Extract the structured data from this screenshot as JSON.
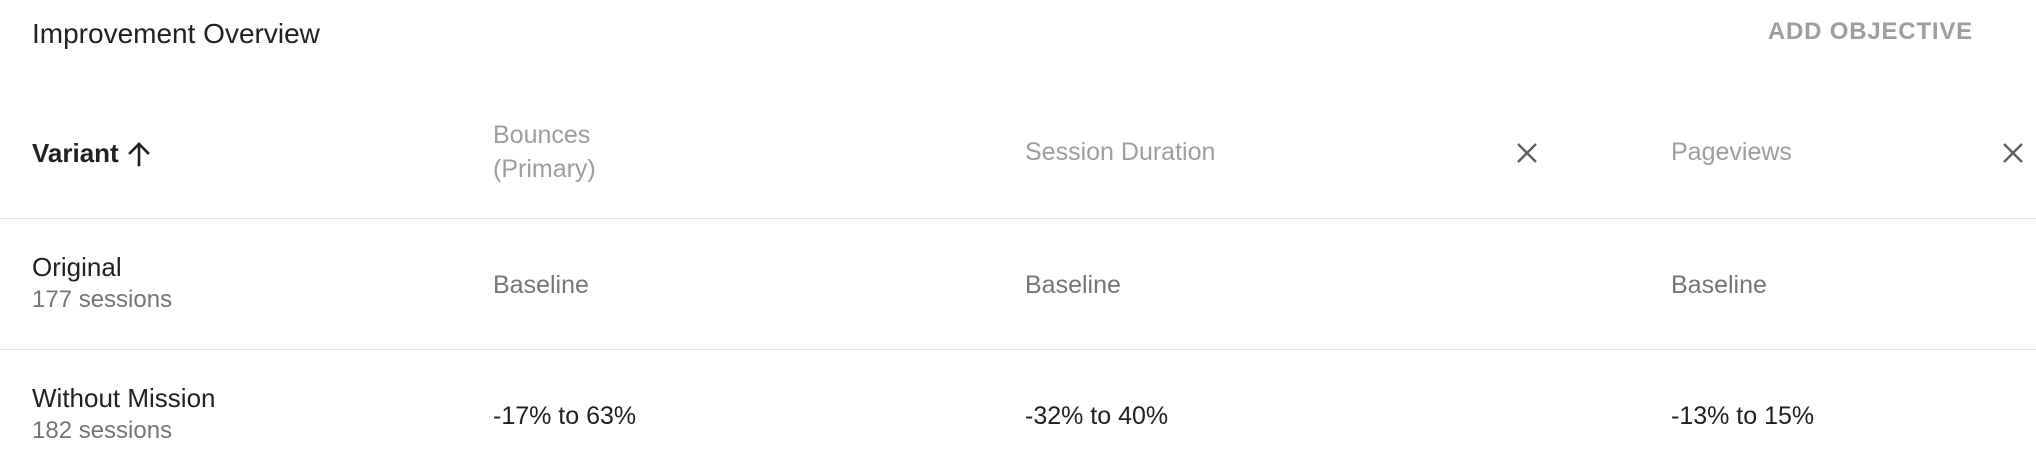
{
  "header": {
    "title": "Improvement Overview",
    "add_objective_label": "ADD OBJECTIVE"
  },
  "table": {
    "columns": {
      "variant": "Variant",
      "metric1_line1": "Bounces",
      "metric1_line2": "(Primary)",
      "metric2": "Session Duration",
      "metric3": "Pageviews"
    },
    "rows": [
      {
        "name": "Original",
        "sessions": "177 sessions",
        "bounces": "Baseline",
        "session_duration": "Baseline",
        "pageviews": "Baseline"
      },
      {
        "name": "Without Mission",
        "sessions": "182 sessions",
        "bounces": "-17% to 63%",
        "session_duration": "-32% to 40%",
        "pageviews": "-13% to 15%"
      }
    ]
  },
  "icons": {
    "sort": "arrow-up-icon",
    "remove": "close-icon"
  },
  "colors": {
    "text_primary": "#212121",
    "text_secondary": "#757575",
    "text_muted": "#9e9e9e",
    "divider": "#e0e0e0"
  }
}
